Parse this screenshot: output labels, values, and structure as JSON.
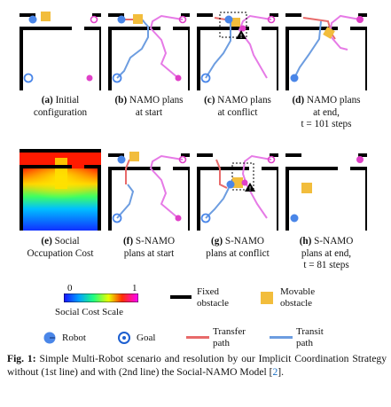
{
  "row1": [
    {
      "tag": "(a)",
      "lines": [
        "Initial",
        "configuration"
      ]
    },
    {
      "tag": "(b)",
      "lines": [
        "NAMO plans",
        "at start"
      ]
    },
    {
      "tag": "(c)",
      "lines": [
        "NAMO plans",
        "at conflict"
      ]
    },
    {
      "tag": "(d)",
      "lines": [
        "NAMO plans",
        "at end,",
        "t = 101 steps"
      ]
    }
  ],
  "row2": [
    {
      "tag": "(e)",
      "lines": [
        "Social",
        "Occupation Cost"
      ]
    },
    {
      "tag": "(f)",
      "lines": [
        "S-NAMO",
        "plans at start"
      ]
    },
    {
      "tag": "(g)",
      "lines": [
        "S-NAMO",
        "plans at conflict"
      ]
    },
    {
      "tag": "(h)",
      "lines": [
        "S-NAMO",
        "plans at end,",
        "t = 81 steps"
      ]
    }
  ],
  "legend": {
    "scale_min": "0",
    "scale_max": "1",
    "scale_label": "Social Cost Scale",
    "fixed": [
      "Fixed",
      "obstacle"
    ],
    "movable": [
      "Movable",
      "obstacle"
    ],
    "robot": "Robot",
    "goal": "Goal",
    "transfer": [
      "Transfer",
      "path"
    ],
    "transit": [
      "Transit",
      "path"
    ]
  },
  "colors": {
    "wall": "#000000",
    "box": "#f2bd3c",
    "robot": "#4a86e8",
    "robot2": "#e040c8",
    "transfer": "#e86a6a",
    "transit": "#6d9de0",
    "pink_path": "#e67ae6"
  },
  "caption": {
    "label": "Fig. 1:",
    "text": "Simple Multi-Robot scenario and resolution by our Implicit Coordination Strategy without (1st line) and with (2nd line) the Social-NAMO Model [",
    "ref": "2",
    "tail": "]."
  }
}
